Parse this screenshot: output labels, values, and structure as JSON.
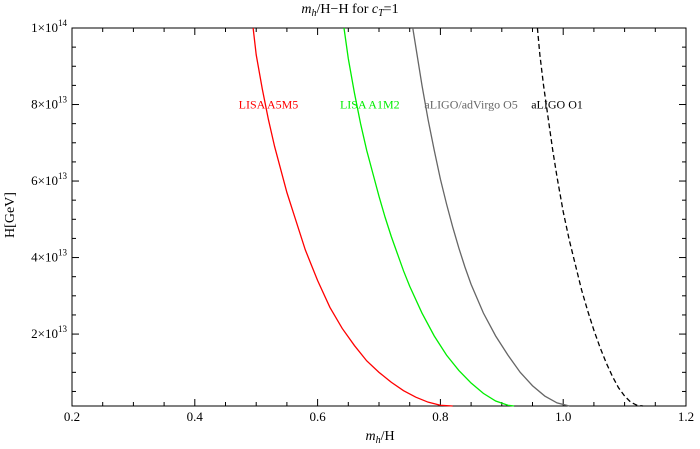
{
  "chart_data": {
    "type": "line",
    "title": {
      "m": "m",
      "sub": "h",
      "mid": "/H−H for ",
      "c": "c",
      "csub": "T",
      "tail": "=1"
    },
    "xlabel": {
      "m": "m",
      "sub": "h",
      "tail": "/H"
    },
    "ylabel": "H[GeV]",
    "xlim": [
      0.2,
      1.2
    ],
    "ylim": [
      1200000000000.0,
      100000000000000.0
    ],
    "x_ticks": [
      {
        "value": 0.2,
        "label": "0.2"
      },
      {
        "value": 0.4,
        "label": "0.4"
      },
      {
        "value": 0.6,
        "label": "0.6"
      },
      {
        "value": 0.8,
        "label": "0.8"
      },
      {
        "value": 1.0,
        "label": "1.0"
      },
      {
        "value": 1.2,
        "label": "1.2"
      }
    ],
    "y_ticks": [
      {
        "value": 20000000000000.0,
        "mant": "2×10",
        "exp": "13"
      },
      {
        "value": 40000000000000.0,
        "mant": "4×10",
        "exp": "13"
      },
      {
        "value": 60000000000000.0,
        "mant": "6×10",
        "exp": "13"
      },
      {
        "value": 80000000000000.0,
        "mant": "8×10",
        "exp": "13"
      },
      {
        "value": 100000000000000.0,
        "mant": "1×10",
        "exp": "14"
      }
    ],
    "series": [
      {
        "name": "LISA A5M5",
        "color": "#ff0000",
        "dashed": false,
        "label": {
          "x": 0.52,
          "y": 80000000000000.0
        },
        "points": [
          [
            0.495,
            100000000000000.0
          ],
          [
            0.5,
            93000000000000.0
          ],
          [
            0.51,
            84000000000000.0
          ],
          [
            0.52,
            76000000000000.0
          ],
          [
            0.53,
            69000000000000.0
          ],
          [
            0.54,
            63000000000000.0
          ],
          [
            0.55,
            57000000000000.0
          ],
          [
            0.56,
            52000000000000.0
          ],
          [
            0.57,
            47000000000000.0
          ],
          [
            0.58,
            42000000000000.0
          ],
          [
            0.59,
            38000000000000.0
          ],
          [
            0.6,
            34000000000000.0
          ],
          [
            0.62,
            27000000000000.0
          ],
          [
            0.64,
            21500000000000.0
          ],
          [
            0.66,
            17000000000000.0
          ],
          [
            0.68,
            13000000000000.0
          ],
          [
            0.7,
            10000000000000.0
          ],
          [
            0.72,
            7400000000000.0
          ],
          [
            0.74,
            5200000000000.0
          ],
          [
            0.76,
            3500000000000.0
          ],
          [
            0.78,
            2200000000000.0
          ],
          [
            0.8,
            1400000000000.0
          ],
          [
            0.82,
            1200000000000.0
          ]
        ]
      },
      {
        "name": "LISA A1M2",
        "color": "#00ee00",
        "dashed": false,
        "label": {
          "x": 0.685,
          "y": 80000000000000.0
        },
        "points": [
          [
            0.643,
            100000000000000.0
          ],
          [
            0.65,
            92000000000000.0
          ],
          [
            0.66,
            83000000000000.0
          ],
          [
            0.67,
            75000000000000.0
          ],
          [
            0.68,
            68000000000000.0
          ],
          [
            0.69,
            62000000000000.0
          ],
          [
            0.7,
            56000000000000.0
          ],
          [
            0.71,
            50500000000000.0
          ],
          [
            0.72,
            45500000000000.0
          ],
          [
            0.73,
            41000000000000.0
          ],
          [
            0.74,
            36500000000000.0
          ],
          [
            0.75,
            32500000000000.0
          ],
          [
            0.77,
            25500000000000.0
          ],
          [
            0.79,
            19500000000000.0
          ],
          [
            0.81,
            14500000000000.0
          ],
          [
            0.83,
            10500000000000.0
          ],
          [
            0.85,
            7200000000000.0
          ],
          [
            0.87,
            4500000000000.0
          ],
          [
            0.89,
            2500000000000.0
          ],
          [
            0.91,
            1400000000000.0
          ],
          [
            0.92,
            1200000000000.0
          ]
        ]
      },
      {
        "name": "aLIGO/adVirgo O5",
        "color": "#666666",
        "dashed": false,
        "label": {
          "x": 0.85,
          "y": 80000000000000.0
        },
        "points": [
          [
            0.755,
            100000000000000.0
          ],
          [
            0.76,
            95000000000000.0
          ],
          [
            0.77,
            85000000000000.0
          ],
          [
            0.78,
            76000000000000.0
          ],
          [
            0.79,
            68000000000000.0
          ],
          [
            0.8,
            60500000000000.0
          ],
          [
            0.81,
            54000000000000.0
          ],
          [
            0.82,
            48000000000000.0
          ],
          [
            0.83,
            42500000000000.0
          ],
          [
            0.84,
            37500000000000.0
          ],
          [
            0.85,
            33000000000000.0
          ],
          [
            0.87,
            25500000000000.0
          ],
          [
            0.89,
            19500000000000.0
          ],
          [
            0.91,
            14500000000000.0
          ],
          [
            0.93,
            10000000000000.0
          ],
          [
            0.95,
            6500000000000.0
          ],
          [
            0.97,
            3800000000000.0
          ],
          [
            0.99,
            2000000000000.0
          ],
          [
            1.01,
            1200000000000.0
          ]
        ]
      },
      {
        "name": "aLIGO O1",
        "color": "#000000",
        "dashed": true,
        "label": {
          "x": 0.99,
          "y": 80000000000000.0
        },
        "points": [
          [
            0.958,
            100000000000000.0
          ],
          [
            0.962,
            93000000000000.0
          ],
          [
            0.968,
            85000000000000.0
          ],
          [
            0.975,
            77000000000000.0
          ],
          [
            0.983,
            68000000000000.0
          ],
          [
            0.99,
            61000000000000.0
          ],
          [
            1.0,
            52000000000000.0
          ],
          [
            1.01,
            44500000000000.0
          ],
          [
            1.02,
            38000000000000.0
          ],
          [
            1.03,
            31500000000000.0
          ],
          [
            1.04,
            26000000000000.0
          ],
          [
            1.05,
            21000000000000.0
          ],
          [
            1.06,
            16500000000000.0
          ],
          [
            1.07,
            12500000000000.0
          ],
          [
            1.08,
            9000000000000.0
          ],
          [
            1.09,
            6000000000000.0
          ],
          [
            1.1,
            3800000000000.0
          ],
          [
            1.11,
            2200000000000.0
          ],
          [
            1.12,
            1400000000000.0
          ],
          [
            1.13,
            1200000000000.0
          ]
        ]
      }
    ]
  }
}
